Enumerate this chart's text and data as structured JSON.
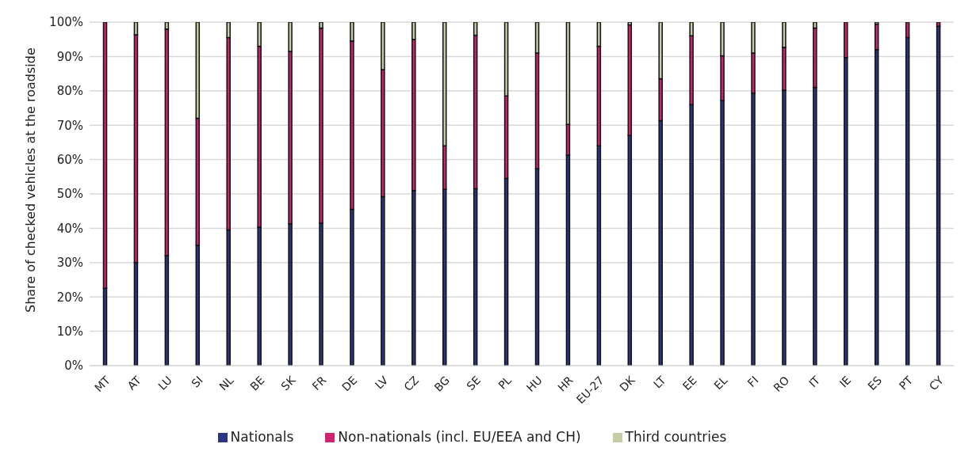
{
  "chart_data": {
    "type": "bar",
    "stacked": true,
    "ylabel": "Share of checked vehicles at the roadside",
    "categories": [
      "MT",
      "AT",
      "LU",
      "SI",
      "NL",
      "BE",
      "SK",
      "FR",
      "DE",
      "LV",
      "CZ",
      "BG",
      "SE",
      "PL",
      "HU",
      "HR",
      "EU-27",
      "DK",
      "LT",
      "EE",
      "EL",
      "FI",
      "RO",
      "IT",
      "IE",
      "ES",
      "PT",
      "CY"
    ],
    "series": [
      {
        "name": "Nationals",
        "color": "#2e3580",
        "values": [
          22.5,
          30,
          32,
          35,
          39.5,
          40.3,
          41.3,
          41.5,
          45.5,
          49.2,
          51,
          51.3,
          51.5,
          54.5,
          57.3,
          61.3,
          64,
          67,
          71.3,
          76,
          77.2,
          79.3,
          80.2,
          81,
          89.7,
          92,
          95.5,
          98.8
        ]
      },
      {
        "name": "Non-nationals (incl. EU/EEA and CH)",
        "color": "#cc2470",
        "values": [
          77.5,
          66.3,
          66,
          37,
          56,
          52.7,
          50.2,
          56.8,
          49,
          37,
          44,
          12.7,
          44.7,
          24,
          33.7,
          8.9,
          29,
          32.2,
          12.2,
          20,
          13,
          11.7,
          12.5,
          17.3,
          10.3,
          7.4,
          4.5,
          1.2
        ]
      },
      {
        "name": "Third countries",
        "color": "#c5cca6",
        "values": [
          0,
          3.7,
          2,
          28,
          4.5,
          7,
          8.5,
          1.7,
          5.5,
          13.8,
          5,
          36,
          3.8,
          21.5,
          9,
          29.8,
          7,
          0.8,
          16.5,
          4,
          9.8,
          9,
          7.3,
          1.7,
          0,
          0.6,
          0,
          0
        ]
      }
    ],
    "ylim": [
      0,
      100
    ],
    "yticks": [
      {
        "value": 0,
        "label": "0%"
      },
      {
        "value": 10,
        "label": "10%"
      },
      {
        "value": 20,
        "label": "20%"
      },
      {
        "value": 30,
        "label": "30%"
      },
      {
        "value": 40,
        "label": "40%"
      },
      {
        "value": 50,
        "label": "50%"
      },
      {
        "value": 60,
        "label": "60%"
      },
      {
        "value": 70,
        "label": "70%"
      },
      {
        "value": 80,
        "label": "80%"
      },
      {
        "value": 90,
        "label": "90%"
      },
      {
        "value": 100,
        "label": "100%"
      }
    ],
    "grid": "y",
    "legend": "bottom"
  }
}
